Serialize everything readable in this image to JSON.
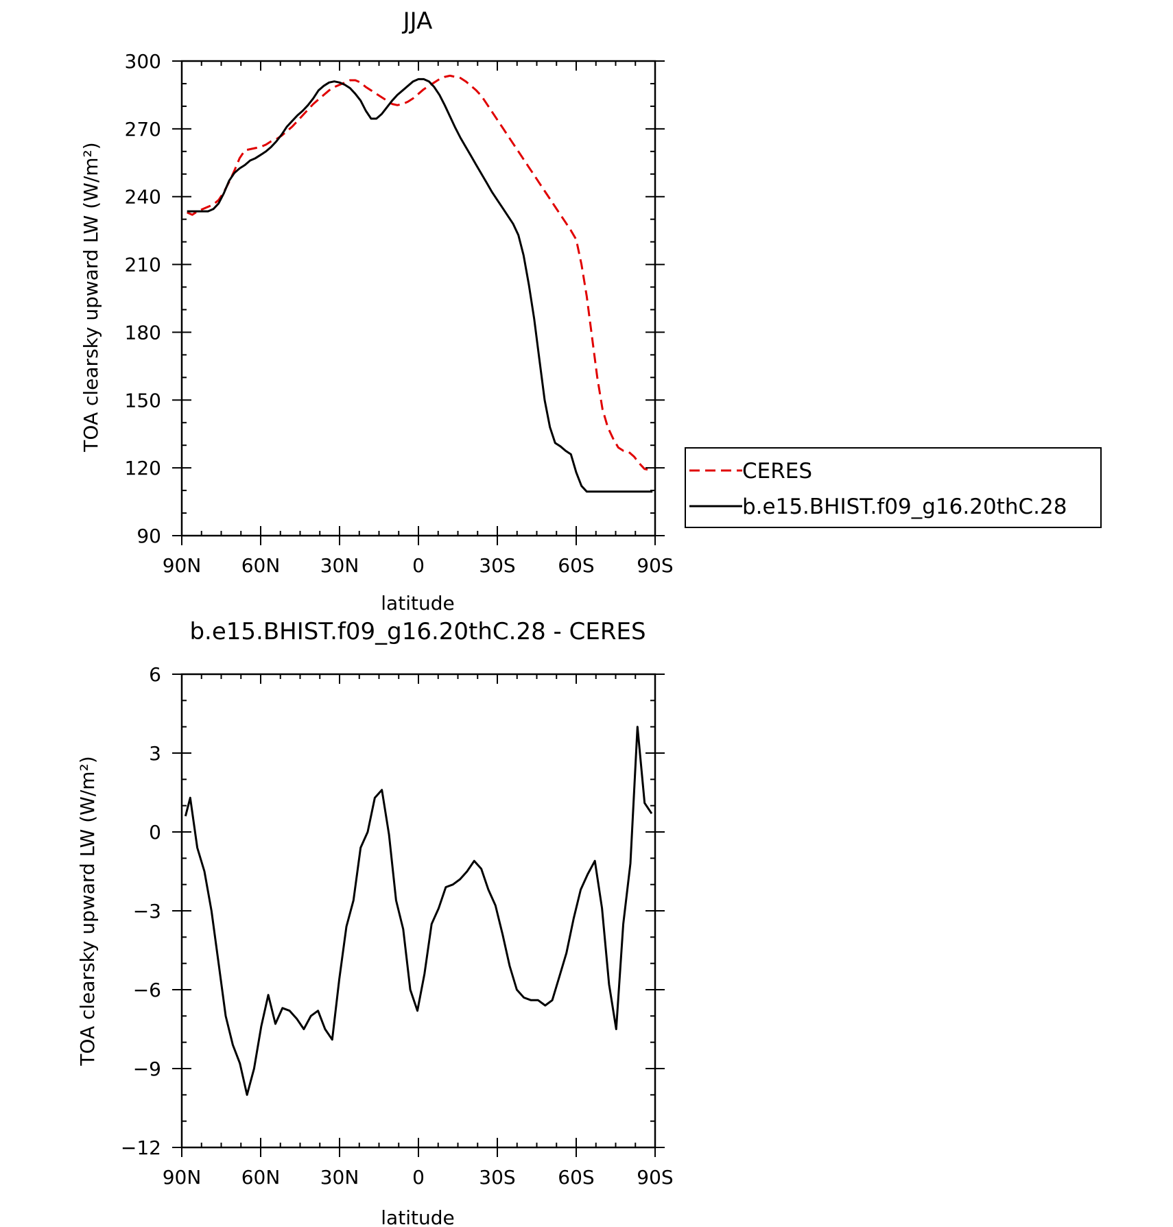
{
  "chart_data": [
    {
      "type": "line",
      "title": "JJA",
      "xlabel": "latitude",
      "ylabel": "TOA clearsky upward LW (W/m²)",
      "xlim": [
        -90,
        90
      ],
      "ylim": [
        90,
        300
      ],
      "x_ticks": [
        {
          "value": -90,
          "label": "90N"
        },
        {
          "value": -60,
          "label": "60N"
        },
        {
          "value": -30,
          "label": "30N"
        },
        {
          "value": 0,
          "label": "0"
        },
        {
          "value": 30,
          "label": "30S"
        },
        {
          "value": 60,
          "label": "60S"
        },
        {
          "value": 90,
          "label": "90S"
        }
      ],
      "y_ticks": [
        90,
        120,
        150,
        180,
        210,
        240,
        270,
        300
      ],
      "grid": false,
      "legend": {
        "placement": "outside-right",
        "entries": [
          "CERES",
          "b.e15.BHIST.f09_g16.20thC.28"
        ]
      },
      "series": [
        {
          "name": "CERES",
          "color": "#e00000",
          "dash": true,
          "x": [
            -88,
            -86,
            -84,
            -82,
            -80,
            -78,
            -76,
            -74,
            -72,
            -70,
            -68,
            -66,
            -64,
            -62,
            -60,
            -58,
            -56,
            -54,
            -52,
            -50,
            -48,
            -46,
            -44,
            -42,
            -40,
            -38,
            -36,
            -34,
            -32,
            -30,
            -28,
            -26,
            -24,
            -22,
            -20,
            -18,
            -16,
            -14,
            -12,
            -10,
            -8,
            -6,
            -4,
            -2,
            0,
            2,
            4,
            6,
            8,
            10,
            12,
            14,
            16,
            18,
            20,
            22,
            24,
            26,
            28,
            30,
            32,
            34,
            36,
            38,
            40,
            42,
            44,
            46,
            48,
            50,
            52,
            54,
            56,
            58,
            60,
            62,
            64,
            66,
            68,
            70,
            72,
            74,
            76,
            78,
            80,
            82,
            84,
            86,
            88,
            89
          ],
          "y": [
            233,
            232,
            233.5,
            234.5,
            235.5,
            236.5,
            238.5,
            242,
            246.5,
            251.5,
            257,
            260.5,
            261,
            261.5,
            262,
            263,
            264.5,
            265.5,
            267,
            269,
            271,
            273.5,
            276,
            278.5,
            281,
            283,
            285,
            287,
            288.5,
            289.5,
            290.5,
            291.5,
            291.5,
            290.5,
            288.5,
            287,
            285.5,
            284,
            282.5,
            281,
            280.5,
            281,
            282,
            283.5,
            285.5,
            287.5,
            289,
            290.5,
            292,
            293,
            293.5,
            293,
            292.5,
            291,
            289,
            287,
            284.5,
            281,
            277.5,
            274,
            270.5,
            267,
            263.5,
            260,
            256.5,
            253,
            249.5,
            246,
            242.5,
            239,
            235.5,
            232,
            228.5,
            225,
            221,
            210,
            196,
            178,
            160,
            146,
            138,
            133,
            129,
            127.5,
            127,
            125,
            122,
            119.5,
            119,
            119
          ]
        },
        {
          "name": "b.e15.BHIST.f09_g16.20thC.28",
          "color": "#000000",
          "dash": false,
          "x": [
            -88,
            -86,
            -84,
            -82,
            -80,
            -78,
            -76,
            -74,
            -72,
            -70,
            -68,
            -66,
            -64,
            -62,
            -60,
            -58,
            -56,
            -54,
            -52,
            -50,
            -48,
            -46,
            -44,
            -42,
            -40,
            -38,
            -36,
            -34,
            -32,
            -30,
            -28,
            -26,
            -24,
            -22,
            -20,
            -18,
            -16,
            -14,
            -12,
            -10,
            -8,
            -6,
            -4,
            -2,
            0,
            2,
            4,
            6,
            8,
            10,
            12,
            14,
            16,
            18,
            20,
            22,
            24,
            26,
            28,
            30,
            32,
            34,
            36,
            38,
            40,
            42,
            44,
            46,
            48,
            50,
            52,
            54,
            56,
            58,
            60,
            62,
            64,
            66,
            68,
            70,
            72,
            74,
            76,
            78,
            80,
            82,
            84,
            86,
            88,
            89
          ],
          "y": [
            233.5,
            233.5,
            233.5,
            233.5,
            233.5,
            234.5,
            237,
            241.5,
            247,
            250.5,
            252.5,
            254,
            256,
            257,
            258.5,
            260,
            262,
            264.5,
            267.5,
            271,
            273.5,
            276,
            278,
            280.5,
            283.5,
            287,
            289,
            290.5,
            291,
            290.5,
            289.5,
            288,
            285.5,
            282.5,
            278,
            274.5,
            274.5,
            276.5,
            279.5,
            282.5,
            285,
            287,
            289,
            291,
            292,
            292,
            291,
            288.5,
            285,
            280.5,
            275.5,
            270.5,
            266,
            262,
            258,
            254,
            250,
            246,
            242,
            238.5,
            235,
            231.5,
            228,
            223,
            214,
            201,
            186,
            168,
            150,
            138,
            131,
            129.5,
            127.5,
            126,
            118,
            112,
            109.5,
            109.5,
            109.5,
            109.5,
            109.5,
            109.5,
            109.5,
            109.5,
            109.5,
            109.5,
            109.5,
            109.5,
            109.5,
            109.5
          ]
        }
      ]
    },
    {
      "type": "line",
      "title": "b.e15.BHIST.f09_g16.20thC.28 - CERES",
      "xlabel": "latitude",
      "ylabel": "TOA clearsky upward LW (W/m²)",
      "xlim": [
        -90,
        90
      ],
      "ylim": [
        -12,
        6
      ],
      "x_ticks": [
        {
          "value": -90,
          "label": "90N"
        },
        {
          "value": -60,
          "label": "60N"
        },
        {
          "value": -30,
          "label": "30N"
        },
        {
          "value": 0,
          "label": "0"
        },
        {
          "value": 30,
          "label": "30S"
        },
        {
          "value": 60,
          "label": "60S"
        },
        {
          "value": 90,
          "label": "90S"
        }
      ],
      "y_ticks": [
        {
          "value": 6,
          "label": "6"
        },
        {
          "value": 3,
          "label": "3"
        },
        {
          "value": 0,
          "label": "0"
        },
        {
          "value": -3,
          "label": "−3"
        },
        {
          "value": -6,
          "label": "−6"
        },
        {
          "value": -9,
          "label": "−9"
        },
        {
          "value": -12,
          "label": "−12"
        }
      ],
      "grid": false,
      "series": [
        {
          "color": "#000000",
          "dash": false,
          "x": [
            -88.6,
            -86.8,
            -84.1,
            -81.4,
            -78.7,
            -76.0,
            -73.3,
            -70.6,
            -67.9,
            -65.2,
            -62.5,
            -59.8,
            -57.1,
            -54.4,
            -51.7,
            -49.0,
            -46.3,
            -43.6,
            -40.9,
            -38.2,
            -35.5,
            -32.8,
            -30.1,
            -27.4,
            -24.7,
            -22.0,
            -19.3,
            -16.6,
            -13.9,
            -11.2,
            -8.5,
            -5.8,
            -3.1,
            -0.4,
            2.3,
            5.0,
            7.7,
            10.4,
            13.1,
            15.8,
            18.5,
            21.2,
            23.9,
            26.6,
            29.3,
            32.0,
            34.7,
            37.4,
            40.1,
            42.8,
            45.5,
            48.2,
            50.9,
            53.6,
            56.3,
            59.0,
            61.7,
            64.4,
            67.1,
            69.8,
            72.5,
            75.2,
            77.9,
            80.6,
            83.3,
            86.0,
            88.7
          ],
          "y": [
            0.6,
            1.3,
            -0.6,
            -1.5,
            -3.0,
            -5.0,
            -7.0,
            -8.1,
            -8.8,
            -10.0,
            -9.0,
            -7.4,
            -6.2,
            -7.3,
            -6.7,
            -6.8,
            -7.1,
            -7.5,
            -7.0,
            -6.8,
            -7.5,
            -7.9,
            -5.6,
            -3.6,
            -2.6,
            -0.6,
            0.0,
            1.3,
            1.6,
            -0.1,
            -2.6,
            -3.7,
            -6.0,
            -6.8,
            -5.4,
            -3.5,
            -2.9,
            -2.1,
            -2.0,
            -1.8,
            -1.5,
            -1.1,
            -1.4,
            -2.2,
            -2.8,
            -3.9,
            -5.1,
            -6.0,
            -6.3,
            -6.4,
            -6.4,
            -6.6,
            -6.4,
            -5.5,
            -4.6,
            -3.3,
            -2.2,
            -1.6,
            -1.1,
            -2.9,
            -5.8,
            -7.5,
            -3.5,
            -1.2,
            4.0,
            1.1,
            0.7
          ]
        }
      ]
    }
  ]
}
